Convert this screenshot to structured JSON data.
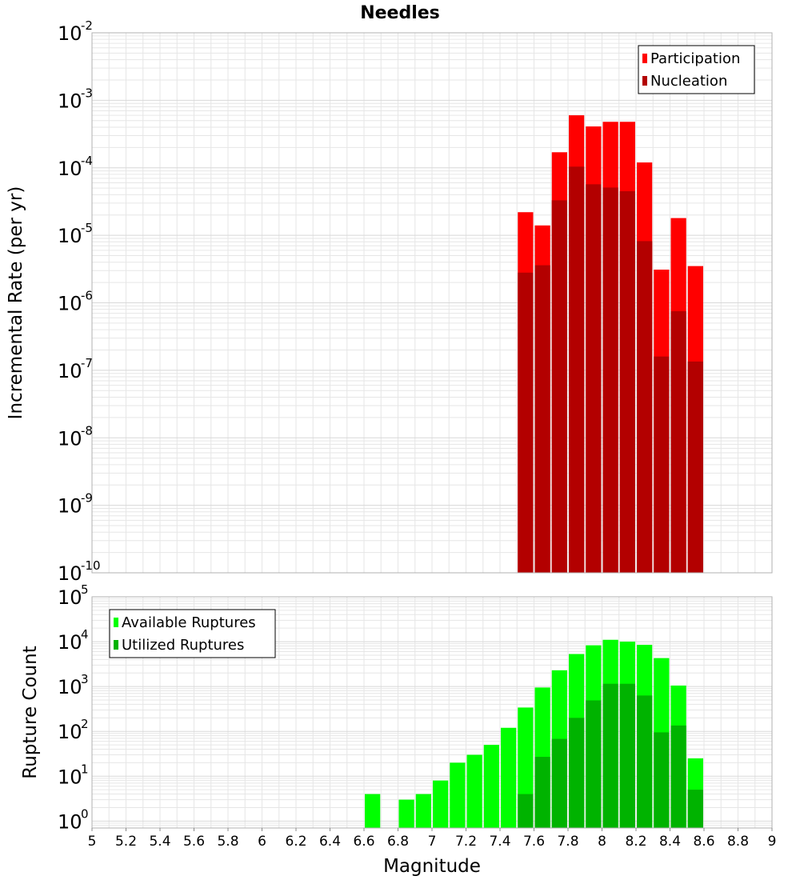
{
  "title": "Needles",
  "colors": {
    "participation": "#ff0000",
    "nucleation": "#b30000",
    "available": "#00ff00",
    "utilized": "#00b300",
    "grid": "#e6e6e6",
    "frame": "#b0b0b0"
  },
  "chart_data": [
    {
      "type": "bar",
      "name": "rate-chart",
      "ylabel": "Incremental Rate (per yr)",
      "xlabel": "",
      "yscale": "log",
      "ylim": [
        1e-10,
        0.01
      ],
      "xlim": [
        5,
        9
      ],
      "y_tick_exponents": [
        "-10",
        "-9",
        "-8",
        "-7",
        "-6",
        "-5",
        "-4",
        "-3",
        "-2"
      ],
      "y_tick_base": "10",
      "legend": [
        "Participation",
        "Nucleation"
      ],
      "legend_position": "top-right",
      "x": [
        7.55,
        7.65,
        7.75,
        7.85,
        7.95,
        8.05,
        8.15,
        8.25,
        8.35,
        8.45,
        8.55
      ],
      "series": [
        {
          "name": "Participation",
          "values": [
            2.2e-05,
            1.4e-05,
            0.00017,
            0.0006,
            0.00041,
            0.00048,
            0.00048,
            0.00012,
            3.1e-06,
            1.8e-05,
            3.5e-06
          ]
        },
        {
          "name": "Nucleation",
          "values": [
            2.8e-06,
            3.6e-06,
            3.3e-05,
            0.000104,
            5.7e-05,
            5.1e-05,
            4.5e-05,
            8.2e-06,
            1.6e-07,
            7.5e-07,
            1.35e-07
          ]
        }
      ]
    },
    {
      "type": "bar",
      "name": "count-chart",
      "ylabel": "Rupture Count",
      "xlabel": "Magnitude",
      "yscale": "log",
      "ylim": [
        0.7,
        100000
      ],
      "xlim": [
        5,
        9
      ],
      "y_tick_exponents": [
        "0",
        "1",
        "2",
        "3",
        "4",
        "5"
      ],
      "y_tick_base": "10",
      "x_tick_labels": [
        "5",
        "5.2",
        "5.4",
        "5.6",
        "5.8",
        "6",
        "6.2",
        "6.4",
        "6.6",
        "6.8",
        "7",
        "7.2",
        "7.4",
        "7.6",
        "7.8",
        "8",
        "8.2",
        "8.4",
        "8.6",
        "8.8",
        "9"
      ],
      "legend": [
        "Available Ruptures",
        "Utilized Ruptures"
      ],
      "legend_position": "top-left",
      "x": [
        6.65,
        6.75,
        6.85,
        6.95,
        7.05,
        7.15,
        7.25,
        7.35,
        7.45,
        7.55,
        7.65,
        7.75,
        7.85,
        7.95,
        8.05,
        8.15,
        8.25,
        8.35,
        8.45,
        8.55
      ],
      "series": [
        {
          "name": "Available Ruptures",
          "values": [
            4,
            0,
            3,
            4,
            8,
            20,
            30,
            50,
            120,
            340,
            950,
            2300,
            5300,
            8300,
            11000,
            10000,
            8500,
            4300,
            1050,
            25
          ]
        },
        {
          "name": "Utilized Ruptures",
          "values": [
            0,
            0,
            0,
            0,
            0,
            0,
            0,
            0,
            0,
            4,
            27,
            68,
            200,
            490,
            1150,
            1150,
            630,
            95,
            135,
            5
          ]
        }
      ]
    }
  ]
}
